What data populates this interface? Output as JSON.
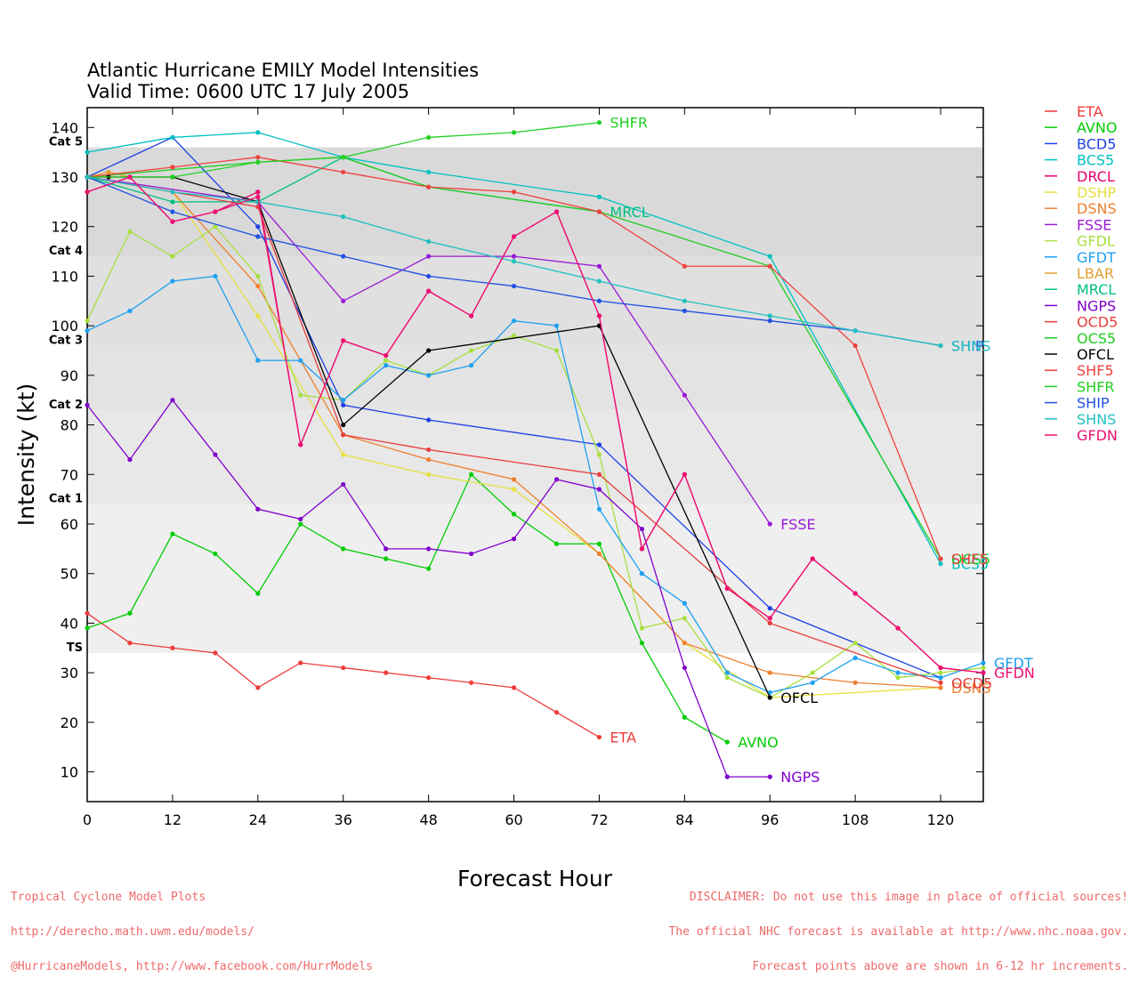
{
  "chart_data": {
    "type": "line",
    "title": "Atlantic Hurricane EMILY Model Intensities",
    "subtitle": "Valid Time: 0600 UTC 17 July 2005",
    "xlabel": "Forecast Hour",
    "ylabel": "Intensity (kt)",
    "xlim": [
      0,
      126
    ],
    "ylim": [
      4,
      144
    ],
    "xticks": [
      0,
      12,
      24,
      36,
      48,
      60,
      72,
      84,
      96,
      108,
      120
    ],
    "yticks": [
      10,
      20,
      30,
      40,
      50,
      60,
      70,
      80,
      90,
      100,
      110,
      120,
      130,
      140
    ],
    "grid": false,
    "legend_position": "right, outside plot",
    "category_bands": [
      {
        "label": "TS",
        "from": 34,
        "to": 64,
        "color": "#efefef"
      },
      {
        "label": "Cat 1",
        "from": 64,
        "to": 83,
        "color": "#e8e8e8"
      },
      {
        "label": "Cat 2",
        "from": 83,
        "to": 96,
        "color": "#e3e3e3"
      },
      {
        "label": "Cat 3",
        "from": 96,
        "to": 114,
        "color": "#e0e0e0"
      },
      {
        "label": "Cat 4",
        "from": 114,
        "to": 136,
        "color": "#d9d9d9"
      },
      {
        "label": "Cat 5",
        "from": 136,
        "to": 144,
        "color": "#ffffff"
      }
    ],
    "series": [
      {
        "name": "ETA",
        "color": "#ee3b3b",
        "end_label": "ETA",
        "points": [
          [
            0,
            42
          ],
          [
            6,
            36
          ],
          [
            12,
            35
          ],
          [
            18,
            34
          ],
          [
            24,
            27
          ],
          [
            30,
            32
          ],
          [
            36,
            31
          ],
          [
            42,
            30
          ],
          [
            48,
            29
          ],
          [
            54,
            28
          ],
          [
            60,
            27
          ],
          [
            66,
            22
          ],
          [
            72,
            17
          ]
        ]
      },
      {
        "name": "AVNO",
        "color": "#00cc00",
        "end_label": "AVNO",
        "points": [
          [
            0,
            39
          ],
          [
            6,
            42
          ],
          [
            12,
            58
          ],
          [
            18,
            54
          ],
          [
            24,
            46
          ],
          [
            30,
            60
          ],
          [
            36,
            55
          ],
          [
            42,
            53
          ],
          [
            48,
            51
          ],
          [
            54,
            70
          ],
          [
            60,
            62
          ],
          [
            66,
            56
          ],
          [
            72,
            56
          ],
          [
            78,
            36
          ],
          [
            84,
            21
          ],
          [
            90,
            16
          ]
        ]
      },
      {
        "name": "BCD5",
        "color": "#1e40e6",
        "end_label": "",
        "points": [
          [
            0,
            130
          ],
          [
            12,
            138
          ],
          [
            24,
            120
          ],
          [
            36,
            84
          ],
          [
            48,
            81
          ],
          [
            72,
            76
          ],
          [
            96,
            43
          ],
          [
            120,
            29
          ]
        ]
      },
      {
        "name": "BCS5",
        "color": "#00c0c0",
        "end_label": "BCS5",
        "points": [
          [
            0,
            135
          ],
          [
            12,
            138
          ],
          [
            24,
            139
          ],
          [
            36,
            134
          ],
          [
            48,
            131
          ],
          [
            72,
            126
          ],
          [
            96,
            114
          ],
          [
            120,
            52
          ]
        ]
      },
      {
        "name": "DRCL",
        "color": "#e6006e",
        "end_label": "",
        "points": [
          [
            0,
            127
          ],
          [
            6,
            130
          ],
          [
            12,
            121
          ],
          [
            18,
            123
          ],
          [
            24,
            127
          ],
          [
            30,
            76
          ],
          [
            36,
            97
          ],
          [
            42,
            94
          ],
          [
            48,
            107
          ],
          [
            54,
            102
          ],
          [
            60,
            118
          ],
          [
            66,
            123
          ],
          [
            72,
            102
          ],
          [
            78,
            55
          ],
          [
            84,
            70
          ],
          [
            90,
            47
          ],
          [
            96,
            41
          ],
          [
            102,
            53
          ],
          [
            108,
            46
          ],
          [
            114,
            39
          ],
          [
            120,
            31
          ],
          [
            126,
            30
          ]
        ]
      },
      {
        "name": "DSHP",
        "color": "#e6e040",
        "end_label": "",
        "points": [
          [
            0,
            130
          ],
          [
            12,
            127
          ],
          [
            24,
            102
          ],
          [
            36,
            74
          ],
          [
            48,
            70
          ],
          [
            60,
            67
          ],
          [
            72,
            54
          ],
          [
            84,
            36
          ],
          [
            96,
            25
          ],
          [
            120,
            27
          ]
        ]
      },
      {
        "name": "DSNS",
        "color": "#ee7f2d",
        "end_label": "DSNS",
        "points": [
          [
            0,
            130
          ],
          [
            12,
            127
          ],
          [
            24,
            108
          ],
          [
            36,
            78
          ],
          [
            48,
            73
          ],
          [
            60,
            69
          ],
          [
            72,
            54
          ],
          [
            84,
            36
          ],
          [
            96,
            30
          ],
          [
            108,
            28
          ],
          [
            120,
            27
          ]
        ]
      },
      {
        "name": "FSSE",
        "color": "#9a1ad6",
        "end_label": "FSSE",
        "points": [
          [
            0,
            130
          ],
          [
            24,
            125
          ],
          [
            36,
            105
          ],
          [
            48,
            114
          ],
          [
            60,
            114
          ],
          [
            72,
            112
          ],
          [
            84,
            86
          ],
          [
            96,
            60
          ]
        ]
      },
      {
        "name": "GFDL",
        "color": "#a8e040",
        "end_label": "",
        "points": [
          [
            0,
            101
          ],
          [
            6,
            119
          ],
          [
            12,
            114
          ],
          [
            18,
            120
          ],
          [
            24,
            110
          ],
          [
            30,
            86
          ],
          [
            36,
            85
          ],
          [
            42,
            93
          ],
          [
            48,
            90
          ],
          [
            54,
            95
          ],
          [
            60,
            98
          ],
          [
            66,
            95
          ],
          [
            72,
            74
          ],
          [
            78,
            39
          ],
          [
            84,
            41
          ],
          [
            90,
            29
          ],
          [
            96,
            25
          ],
          [
            102,
            30
          ],
          [
            108,
            36
          ],
          [
            114,
            29
          ],
          [
            120,
            30
          ],
          [
            126,
            31
          ]
        ]
      },
      {
        "name": "GFDT",
        "color": "#1ea0f0",
        "end_label": "GFDT",
        "points": [
          [
            0,
            99
          ],
          [
            6,
            103
          ],
          [
            12,
            109
          ],
          [
            18,
            110
          ],
          [
            24,
            93
          ],
          [
            30,
            93
          ],
          [
            36,
            85
          ],
          [
            42,
            92
          ],
          [
            48,
            90
          ],
          [
            54,
            92
          ],
          [
            60,
            101
          ],
          [
            66,
            100
          ],
          [
            72,
            63
          ],
          [
            78,
            50
          ],
          [
            84,
            44
          ],
          [
            90,
            30
          ],
          [
            96,
            26
          ],
          [
            102,
            28
          ],
          [
            108,
            33
          ],
          [
            114,
            30
          ],
          [
            120,
            29
          ],
          [
            126,
            32
          ]
        ]
      },
      {
        "name": "LBAR",
        "color": "#e0a030",
        "end_label": "",
        "points": [
          [
            0,
            130
          ],
          [
            3,
            131
          ],
          [
            6,
            130
          ]
        ]
      },
      {
        "name": "MRCL",
        "color": "#00c080",
        "end_label": "MRCL",
        "points": [
          [
            0,
            130
          ],
          [
            12,
            125
          ],
          [
            24,
            125
          ],
          [
            36,
            134
          ],
          [
            48,
            128
          ],
          [
            72,
            123
          ]
        ]
      },
      {
        "name": "NGPS",
        "color": "#8000cc",
        "end_label": "NGPS",
        "points": [
          [
            0,
            84
          ],
          [
            6,
            73
          ],
          [
            12,
            85
          ],
          [
            18,
            74
          ],
          [
            24,
            63
          ],
          [
            30,
            61
          ],
          [
            36,
            68
          ],
          [
            42,
            55
          ],
          [
            48,
            55
          ],
          [
            54,
            54
          ],
          [
            60,
            57
          ],
          [
            66,
            69
          ],
          [
            72,
            67
          ],
          [
            78,
            59
          ],
          [
            84,
            31
          ],
          [
            90,
            9
          ],
          [
            96,
            9
          ]
        ]
      },
      {
        "name": "OCD5",
        "color": "#e83c3c",
        "end_label": "OCD5",
        "points": [
          [
            0,
            130
          ],
          [
            24,
            124
          ],
          [
            36,
            78
          ],
          [
            48,
            75
          ],
          [
            72,
            70
          ],
          [
            96,
            40
          ],
          [
            120,
            28
          ]
        ]
      },
      {
        "name": "OCS5",
        "color": "#20cc20",
        "end_label": "OCS5",
        "points": [
          [
            0,
            130
          ],
          [
            24,
            133
          ],
          [
            36,
            134
          ],
          [
            48,
            128
          ],
          [
            72,
            123
          ],
          [
            96,
            112
          ],
          [
            120,
            53
          ]
        ]
      },
      {
        "name": "OFCL",
        "color": "#000000",
        "end_label": "OFCL",
        "points": [
          [
            0,
            130
          ],
          [
            3,
            130
          ],
          [
            12,
            130
          ],
          [
            24,
            125
          ],
          [
            36,
            80
          ],
          [
            48,
            95
          ],
          [
            72,
            100
          ],
          [
            96,
            25
          ]
        ]
      },
      {
        "name": "SHF5",
        "color": "#f04040",
        "end_label": "SHF5",
        "points": [
          [
            0,
            130
          ],
          [
            12,
            132
          ],
          [
            24,
            134
          ],
          [
            36,
            131
          ],
          [
            48,
            128
          ],
          [
            60,
            127
          ],
          [
            72,
            123
          ],
          [
            84,
            112
          ],
          [
            96,
            112
          ],
          [
            108,
            96
          ],
          [
            120,
            53
          ]
        ]
      },
      {
        "name": "SHFR",
        "color": "#20d020",
        "end_label": "SHFR",
        "points": [
          [
            0,
            130
          ],
          [
            12,
            130
          ],
          [
            24,
            133
          ],
          [
            36,
            134
          ],
          [
            48,
            138
          ],
          [
            60,
            139
          ],
          [
            72,
            141
          ]
        ]
      },
      {
        "name": "SHIP",
        "color": "#2050e0",
        "end_label": "SHIP",
        "points": [
          [
            0,
            130
          ],
          [
            12,
            123
          ],
          [
            24,
            118
          ],
          [
            36,
            114
          ],
          [
            48,
            110
          ],
          [
            60,
            108
          ],
          [
            72,
            105
          ],
          [
            84,
            103
          ],
          [
            96,
            101
          ],
          [
            108,
            99
          ],
          [
            120,
            96
          ]
        ]
      },
      {
        "name": "SHNS",
        "color": "#20c0c0",
        "end_label": "SHNS",
        "points": [
          [
            0,
            130
          ],
          [
            12,
            127
          ],
          [
            24,
            125
          ],
          [
            36,
            122
          ],
          [
            48,
            117
          ],
          [
            60,
            113
          ],
          [
            72,
            109
          ],
          [
            84,
            105
          ],
          [
            96,
            102
          ],
          [
            108,
            99
          ],
          [
            120,
            96
          ]
        ]
      },
      {
        "name": "GFDN",
        "color": "#ee1070",
        "end_label": "GFDN",
        "points": [
          [
            0,
            127
          ],
          [
            6,
            130
          ],
          [
            12,
            121
          ],
          [
            18,
            123
          ],
          [
            24,
            126
          ],
          [
            30,
            76
          ],
          [
            36,
            97
          ],
          [
            42,
            94
          ],
          [
            48,
            107
          ],
          [
            54,
            102
          ],
          [
            60,
            118
          ],
          [
            66,
            123
          ],
          [
            72,
            102
          ],
          [
            78,
            55
          ],
          [
            84,
            70
          ],
          [
            90,
            47
          ],
          [
            96,
            41
          ],
          [
            102,
            53
          ],
          [
            108,
            46
          ],
          [
            114,
            39
          ],
          [
            120,
            31
          ],
          [
            126,
            30
          ]
        ]
      }
    ]
  },
  "footer": {
    "left_lines": [
      "Tropical Cyclone Model Plots",
      "http://derecho.math.uwm.edu/models/",
      "@HurricaneModels, http://www.facebook.com/HurrModels"
    ],
    "right_lines": [
      "DISCLAIMER: Do not use this image in place of official sources!",
      "The official NHC forecast is available at http://www.nhc.noaa.gov.",
      "Forecast points above are shown in 6-12 hr increments."
    ]
  }
}
